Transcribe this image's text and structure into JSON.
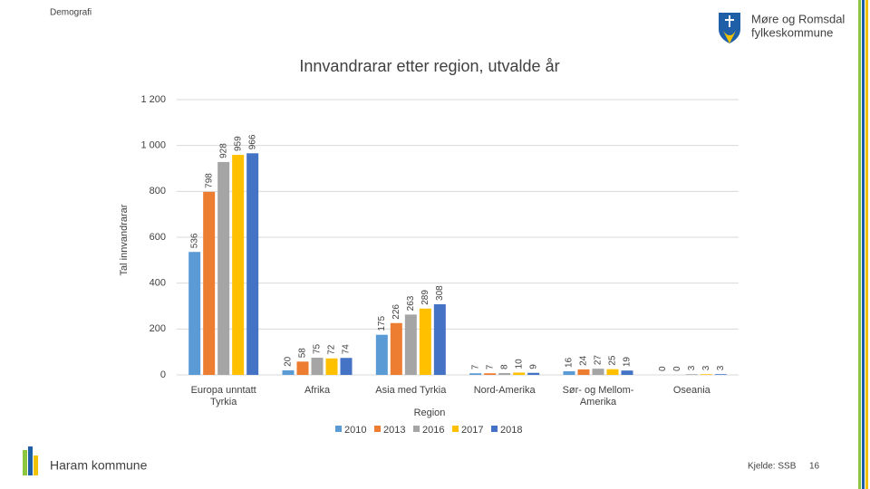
{
  "header": "Demografi",
  "logo": {
    "line1": "Møre og Romsdal",
    "line2": "fylkeskommune"
  },
  "footer": {
    "left": "Haram kommune",
    "source": "Kjelde: SSB",
    "page": 16
  },
  "chart_data": {
    "type": "bar",
    "title": "Innvandrarar etter region, utvalde år",
    "x_label": "Region",
    "y_label": "Tal innvandrarar",
    "categories": [
      "Europa unntatt Tyrkia",
      "Afrika",
      "Asia med Tyrkia",
      "Nord-Amerika",
      "Sør- og Mellom-Amerika",
      "Oseania"
    ],
    "series": [
      {
        "name": "2010",
        "color": "#5b9bd5",
        "values": [
          536,
          20,
          175,
          7,
          16,
          0
        ]
      },
      {
        "name": "2013",
        "color": "#ed7d31",
        "values": [
          798,
          58,
          226,
          7,
          24,
          0
        ]
      },
      {
        "name": "2016",
        "color": "#a5a5a5",
        "values": [
          928,
          75,
          263,
          8,
          27,
          3
        ]
      },
      {
        "name": "2017",
        "color": "#ffc000",
        "values": [
          959,
          72,
          289,
          10,
          25,
          3
        ]
      },
      {
        "name": "2018",
        "color": "#4472c4",
        "values": [
          966,
          74,
          308,
          9,
          19,
          3
        ]
      }
    ],
    "ylim": [
      0,
      1200
    ],
    "yticks": [
      0,
      200,
      400,
      600,
      800,
      {
        "value": 1000,
        "label": "1 000"
      },
      {
        "value": 1200,
        "label": "1 200"
      }
    ],
    "grid": true,
    "legend": "bottom"
  }
}
